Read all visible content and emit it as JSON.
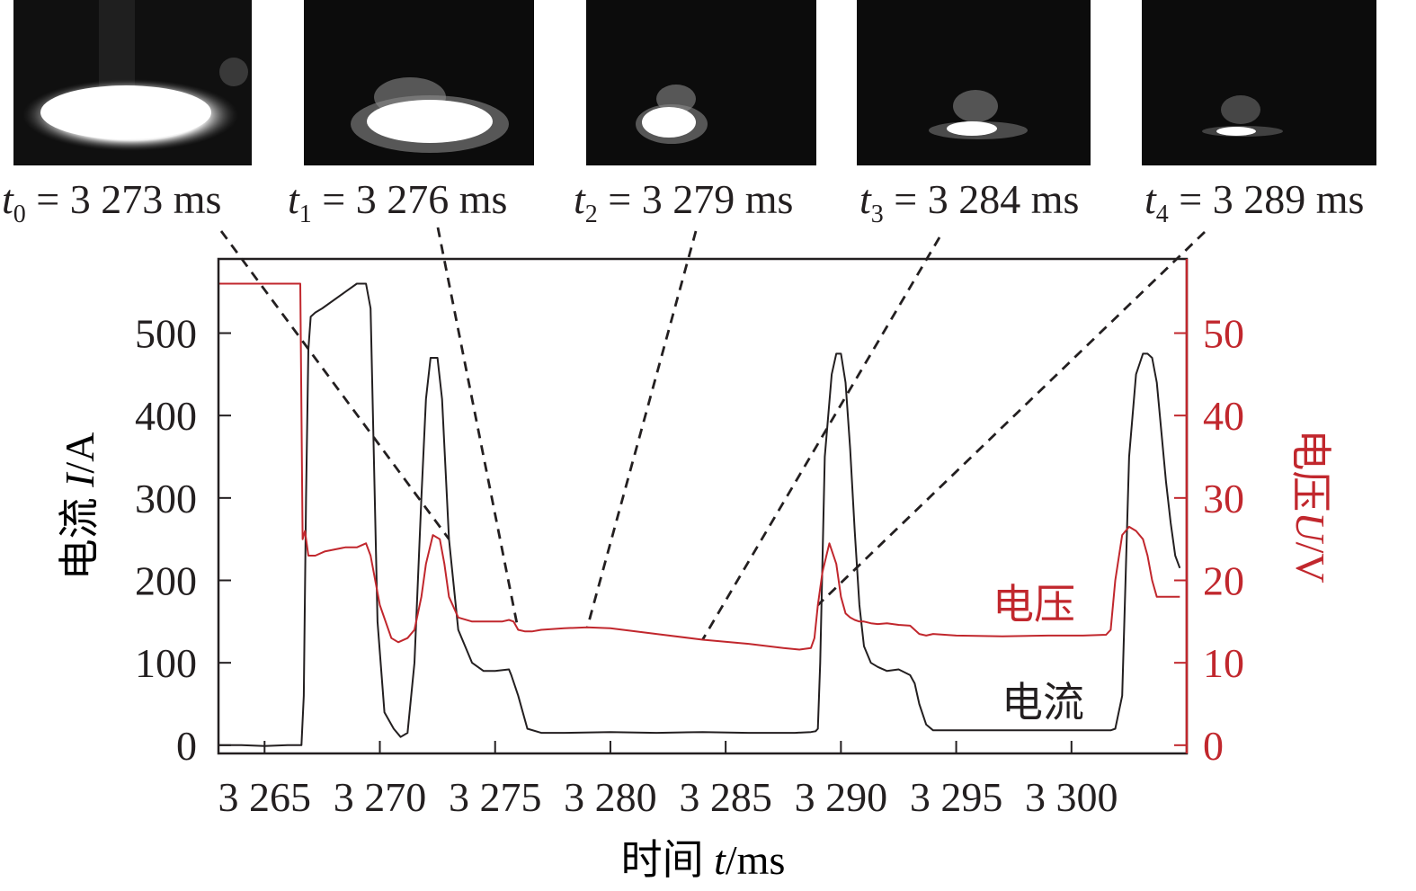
{
  "frames": [
    {
      "t": "t",
      "sub": "0",
      "text": " = 3 273 ms",
      "time": 3273
    },
    {
      "t": "t",
      "sub": "1",
      "text": " = 3 276 ms",
      "time": 3276
    },
    {
      "t": "t",
      "sub": "2",
      "text": " = 3 279 ms",
      "time": 3279
    },
    {
      "t": "t",
      "sub": "3",
      "text": " = 3 284 ms",
      "time": 3284
    },
    {
      "t": "t",
      "sub": "4",
      "text": " = 3 289 ms",
      "time": 3289
    }
  ],
  "chart_data": {
    "type": "line",
    "xlabel_prefix": "时间 ",
    "xlabel_var": "t",
    "xlabel_unit": "/ms",
    "ylabel_prefix": "电流 ",
    "ylabel_var": "I",
    "ylabel_unit": "/A",
    "y2label_prefix": "电压",
    "y2label_var": "U",
    "y2label_unit": "/V",
    "xlim": [
      3263,
      3305
    ],
    "ylim": [
      -10,
      590
    ],
    "y2lim": [
      -1,
      59
    ],
    "xticks": [
      3265,
      3270,
      3275,
      3280,
      3285,
      3290,
      3295,
      3300
    ],
    "xtick_labels": [
      "3 265",
      "3 270",
      "3 275",
      "3 280",
      "3 285",
      "3 290",
      "3 295",
      "3 300"
    ],
    "yticks": [
      0,
      100,
      200,
      300,
      400,
      500
    ],
    "yticks2": [
      0,
      10,
      20,
      30,
      40,
      50
    ],
    "series": [
      {
        "name": "电流",
        "axis": "left",
        "color": "#231f20",
        "x": [
          3263.0,
          3264.0,
          3265.0,
          3266.0,
          3266.6,
          3266.7,
          3266.8,
          3266.9,
          3267.0,
          3267.2,
          3267.5,
          3268.5,
          3269.0,
          3269.4,
          3269.6,
          3269.9,
          3270.2,
          3270.6,
          3270.9,
          3271.2,
          3271.5,
          3271.8,
          3272.0,
          3272.2,
          3272.5,
          3272.7,
          3273.0,
          3273.4,
          3274.0,
          3274.5,
          3275.0,
          3275.6,
          3275.7,
          3276.0,
          3276.2,
          3276.4,
          3277.0,
          3278.0,
          3280.0,
          3282.0,
          3284.0,
          3286.0,
          3288.0,
          3288.7,
          3288.9,
          3289.0,
          3289.1,
          3289.3,
          3289.6,
          3289.8,
          3290.0,
          3290.2,
          3290.4,
          3290.6,
          3290.8,
          3291.0,
          3291.3,
          3291.6,
          3292.0,
          3292.5,
          3293.0,
          3293.2,
          3293.4,
          3293.7,
          3294.0,
          3295.0,
          3297.0,
          3299.0,
          3300.5,
          3301.5,
          3301.7,
          3301.9,
          3302.2,
          3302.5,
          3302.8,
          3303.1,
          3303.3,
          3303.5,
          3303.7,
          3303.9,
          3304.1,
          3304.3,
          3304.5,
          3304.7
        ],
        "y": [
          0,
          0,
          -1,
          0,
          0,
          60,
          300,
          480,
          520,
          525,
          530,
          550,
          560,
          560,
          530,
          150,
          40,
          20,
          10,
          15,
          100,
          300,
          420,
          470,
          470,
          420,
          250,
          140,
          100,
          90,
          90,
          92,
          85,
          60,
          40,
          20,
          15,
          15,
          16,
          15,
          16,
          15,
          15,
          16,
          17,
          20,
          100,
          350,
          450,
          475,
          475,
          440,
          360,
          260,
          170,
          120,
          100,
          95,
          90,
          92,
          85,
          75,
          50,
          25,
          18,
          18,
          18,
          18,
          18,
          18,
          18,
          20,
          60,
          350,
          450,
          475,
          475,
          470,
          440,
          380,
          320,
          270,
          230,
          215
        ]
      },
      {
        "name": "电压",
        "axis": "right",
        "color": "#c1272d",
        "x": [
          3263.0,
          3264.0,
          3265.0,
          3266.0,
          3266.55,
          3266.65,
          3266.75,
          3266.9,
          3267.2,
          3267.6,
          3268.5,
          3269.0,
          3269.4,
          3269.6,
          3270.0,
          3270.5,
          3270.8,
          3271.2,
          3271.5,
          3271.8,
          3272.0,
          3272.3,
          3272.6,
          3272.8,
          3273.0,
          3273.4,
          3274.0,
          3274.8,
          3275.3,
          3275.6,
          3275.8,
          3276.0,
          3276.3,
          3276.6,
          3277.0,
          3278.0,
          3279.0,
          3280.0,
          3282.0,
          3284.0,
          3286.0,
          3287.5,
          3288.2,
          3288.7,
          3288.85,
          3289.0,
          3289.2,
          3289.5,
          3289.8,
          3290.0,
          3290.2,
          3290.4,
          3290.6,
          3290.8,
          3291.0,
          3291.3,
          3291.6,
          3292.0,
          3292.5,
          3293.0,
          3293.2,
          3293.4,
          3293.7,
          3294.0,
          3295.0,
          3297.0,
          3299.0,
          3300.5,
          3301.5,
          3301.7,
          3301.9,
          3302.2,
          3302.5,
          3302.8,
          3303.1,
          3303.3,
          3303.5,
          3303.7,
          3303.9,
          3304.1,
          3304.3,
          3304.7
        ],
        "y": [
          56,
          56,
          56,
          56,
          56,
          25,
          26,
          23,
          23,
          23.5,
          24,
          24,
          24.5,
          23,
          17,
          13,
          12.5,
          13,
          14,
          18,
          22,
          25.5,
          25,
          22,
          18,
          15.5,
          15,
          15,
          15,
          15.2,
          15,
          14,
          13.8,
          13.8,
          14,
          14.2,
          14.3,
          14.2,
          13.5,
          12.8,
          12.3,
          11.8,
          11.6,
          11.8,
          13,
          17,
          21,
          24.5,
          22,
          18,
          16,
          15.5,
          15.2,
          15,
          15,
          14.8,
          14.7,
          14.8,
          14.6,
          14.5,
          14,
          13.5,
          13.3,
          13.5,
          13.3,
          13.2,
          13.3,
          13.3,
          13.4,
          14,
          20,
          25.5,
          26.5,
          26,
          25,
          23,
          20,
          18,
          18,
          18,
          18,
          18
        ]
      }
    ],
    "annotations": [
      {
        "text": "电压",
        "color": "#c1272d"
      },
      {
        "text": "电流",
        "color": "#231f20"
      }
    ]
  }
}
